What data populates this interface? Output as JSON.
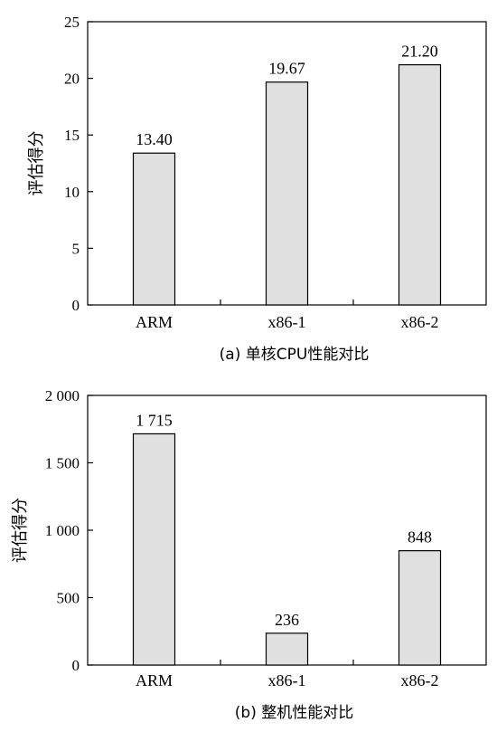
{
  "chart_data": [
    {
      "type": "bar",
      "categories": [
        "ARM",
        "x86-1",
        "x86-2"
      ],
      "values": [
        13.4,
        19.67,
        21.2
      ],
      "value_labels": [
        "13.40",
        "19.67",
        "21.20"
      ],
      "ylabel": "评估得分",
      "ylim": [
        0,
        25
      ],
      "yticks": [
        0,
        5,
        10,
        15,
        20,
        25
      ],
      "ytick_labels": [
        "0",
        "5",
        "10",
        "15",
        "20",
        "25"
      ],
      "caption": "(a)  单核CPU性能对比",
      "bar_color": "#e0e0e0",
      "grid": false
    },
    {
      "type": "bar",
      "categories": [
        "ARM",
        "x86-1",
        "x86-2"
      ],
      "values": [
        1715,
        236,
        848
      ],
      "value_labels": [
        "1 715",
        "236",
        "848"
      ],
      "ylabel": "评估得分",
      "ylim": [
        0,
        2000
      ],
      "yticks": [
        0,
        500,
        1000,
        1500,
        2000
      ],
      "ytick_labels": [
        "0",
        "500",
        "1 000",
        "1 500",
        "2 000"
      ],
      "caption": "(b)  整机性能对比",
      "bar_color": "#e0e0e0",
      "grid": false
    }
  ]
}
